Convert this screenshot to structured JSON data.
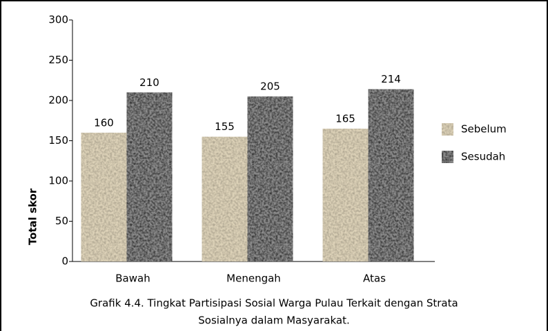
{
  "chart_data": {
    "type": "bar",
    "caption": [
      "Grafik 4.4. Tingkat Partisipasi Sosial Warga Pulau Terkait dengan Strata",
      "Sosialnya dalam Masyarakat."
    ],
    "y_label": "Total skor",
    "categories": [
      "Bawah",
      "Menengah",
      "Atas"
    ],
    "series": [
      {
        "name": "Sebelum",
        "color": "#ddd2b8",
        "values": [
          160,
          155,
          165
        ]
      },
      {
        "name": "Sesudah",
        "color": "#8c8c8c",
        "values": [
          210,
          205,
          214
        ]
      }
    ],
    "ylim": [
      0,
      300
    ],
    "yticks": [
      0,
      50,
      100,
      150,
      200,
      250,
      300
    ],
    "legend": "right"
  }
}
